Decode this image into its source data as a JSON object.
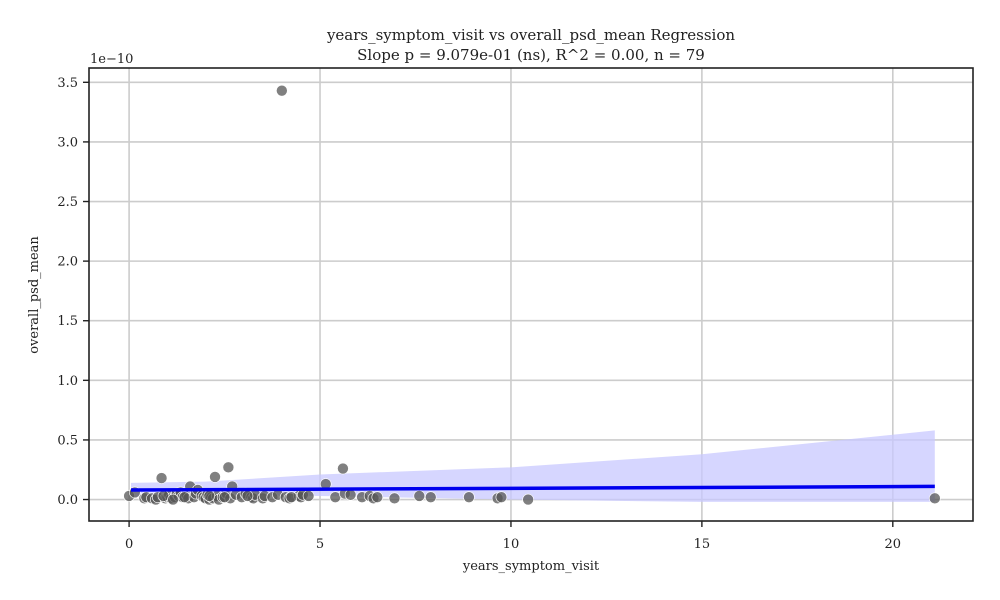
{
  "chart_data": {
    "type": "scatter",
    "title": "years_symptom_visit vs overall_psd_mean Regression",
    "subtitle": "Slope p = 9.079e-01 (ns), R^2 = 0.00, n = 79",
    "xlabel": "years_symptom_visit",
    "ylabel": "overall_psd_mean",
    "y_offset_label": "1e−10",
    "xlim": [
      -1.05,
      22.1
    ],
    "ylim": [
      -0.18,
      3.62
    ],
    "x_ticks": [
      0,
      5,
      10,
      15,
      20
    ],
    "x_tick_labels": [
      "0",
      "5",
      "10",
      "15",
      "20"
    ],
    "y_ticks": [
      0.0,
      0.5,
      1.0,
      1.5,
      2.0,
      2.5,
      3.0,
      3.5
    ],
    "y_tick_labels": [
      "0.0",
      "0.5",
      "1.0",
      "1.5",
      "2.0",
      "2.5",
      "3.0",
      "3.5"
    ],
    "grid": true,
    "colors": {
      "points": "#555555",
      "regression_line": "#0000ee",
      "confidence_band": "#c8c8ff",
      "grid": "#cccccc",
      "axes": "#222222"
    },
    "regression_line": {
      "x": [
        0.05,
        21.1
      ],
      "y": [
        0.08,
        0.11
      ]
    },
    "confidence_band": {
      "x": [
        0.05,
        2,
        5,
        10,
        15,
        21.1
      ],
      "lower": [
        0.02,
        0.04,
        0.03,
        0.0,
        -0.02,
        -0.02
      ],
      "upper": [
        0.14,
        0.15,
        0.21,
        0.27,
        0.38,
        0.58
      ]
    },
    "points": [
      {
        "x": 0.0,
        "y": 0.03
      },
      {
        "x": 0.15,
        "y": 0.06
      },
      {
        "x": 0.4,
        "y": 0.01
      },
      {
        "x": 0.45,
        "y": 0.02
      },
      {
        "x": 0.6,
        "y": 0.01
      },
      {
        "x": 0.7,
        "y": 0.0
      },
      {
        "x": 0.75,
        "y": 0.02
      },
      {
        "x": 0.85,
        "y": 0.18
      },
      {
        "x": 0.95,
        "y": 0.01
      },
      {
        "x": 1.0,
        "y": 0.02
      },
      {
        "x": 1.05,
        "y": 0.04
      },
      {
        "x": 1.1,
        "y": 0.01
      },
      {
        "x": 1.2,
        "y": 0.02
      },
      {
        "x": 1.25,
        "y": 0.05
      },
      {
        "x": 1.3,
        "y": 0.03
      },
      {
        "x": 1.35,
        "y": 0.06
      },
      {
        "x": 1.4,
        "y": 0.02
      },
      {
        "x": 1.5,
        "y": 0.04
      },
      {
        "x": 1.55,
        "y": 0.01
      },
      {
        "x": 1.6,
        "y": 0.11
      },
      {
        "x": 1.7,
        "y": 0.02
      },
      {
        "x": 1.75,
        "y": 0.05
      },
      {
        "x": 1.8,
        "y": 0.08
      },
      {
        "x": 1.9,
        "y": 0.03
      },
      {
        "x": 1.95,
        "y": 0.02
      },
      {
        "x": 2.0,
        "y": 0.01
      },
      {
        "x": 2.05,
        "y": 0.04
      },
      {
        "x": 2.1,
        "y": 0.0
      },
      {
        "x": 2.15,
        "y": 0.02
      },
      {
        "x": 2.2,
        "y": 0.01
      },
      {
        "x": 2.25,
        "y": 0.19
      },
      {
        "x": 2.3,
        "y": 0.03
      },
      {
        "x": 2.35,
        "y": 0.0
      },
      {
        "x": 2.45,
        "y": 0.02
      },
      {
        "x": 2.55,
        "y": 0.05
      },
      {
        "x": 2.6,
        "y": 0.27
      },
      {
        "x": 2.65,
        "y": 0.01
      },
      {
        "x": 2.7,
        "y": 0.11
      },
      {
        "x": 2.8,
        "y": 0.04
      },
      {
        "x": 2.95,
        "y": 0.02
      },
      {
        "x": 3.05,
        "y": 0.05
      },
      {
        "x": 3.2,
        "y": 0.02
      },
      {
        "x": 3.25,
        "y": 0.01
      },
      {
        "x": 3.3,
        "y": 0.04
      },
      {
        "x": 3.5,
        "y": 0.01
      },
      {
        "x": 3.55,
        "y": 0.03
      },
      {
        "x": 3.75,
        "y": 0.02
      },
      {
        "x": 3.9,
        "y": 0.04
      },
      {
        "x": 4.0,
        "y": 3.43
      },
      {
        "x": 4.1,
        "y": 0.02
      },
      {
        "x": 4.2,
        "y": 0.01
      },
      {
        "x": 4.45,
        "y": 0.03
      },
      {
        "x": 4.5,
        "y": 0.02
      },
      {
        "x": 4.55,
        "y": 0.04
      },
      {
        "x": 4.7,
        "y": 0.03
      },
      {
        "x": 5.15,
        "y": 0.13
      },
      {
        "x": 5.4,
        "y": 0.02
      },
      {
        "x": 5.6,
        "y": 0.26
      },
      {
        "x": 5.65,
        "y": 0.05
      },
      {
        "x": 5.8,
        "y": 0.04
      },
      {
        "x": 6.1,
        "y": 0.02
      },
      {
        "x": 6.3,
        "y": 0.03
      },
      {
        "x": 6.4,
        "y": 0.01
      },
      {
        "x": 6.5,
        "y": 0.02
      },
      {
        "x": 6.95,
        "y": 0.01
      },
      {
        "x": 7.6,
        "y": 0.03
      },
      {
        "x": 7.9,
        "y": 0.02
      },
      {
        "x": 8.9,
        "y": 0.02
      },
      {
        "x": 9.65,
        "y": 0.01
      },
      {
        "x": 9.75,
        "y": 0.02
      },
      {
        "x": 10.45,
        "y": 0.0
      },
      {
        "x": 21.1,
        "y": 0.01
      },
      {
        "x": 2.1,
        "y": 0.03
      },
      {
        "x": 1.45,
        "y": 0.02
      },
      {
        "x": 0.9,
        "y": 0.03
      },
      {
        "x": 3.1,
        "y": 0.03
      },
      {
        "x": 4.25,
        "y": 0.02
      },
      {
        "x": 1.15,
        "y": 0.0
      },
      {
        "x": 2.5,
        "y": 0.02
      }
    ]
  }
}
